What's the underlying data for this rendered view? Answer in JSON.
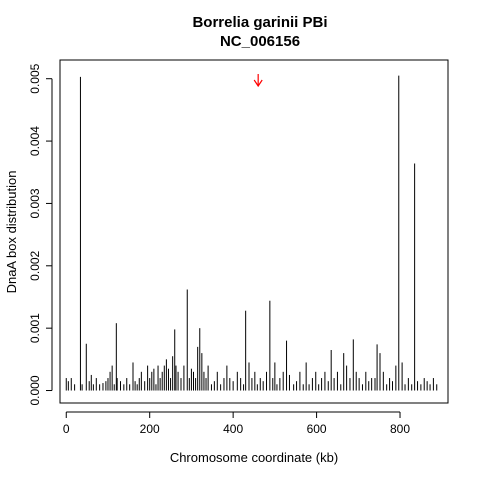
{
  "chart_data": {
    "type": "bar",
    "title": "Borrelia garinii PBi",
    "subtitle": "NC_006156",
    "xlabel": "Chromosome coordinate (kb)",
    "ylabel": "DnaA box distribution",
    "xlim": [
      -15,
      915
    ],
    "ylim": [
      -0.0002,
      0.0053
    ],
    "xticks": [
      0,
      200,
      400,
      600,
      800
    ],
    "yticks": [
      0.0,
      0.001,
      0.002,
      0.003,
      0.004,
      0.005
    ],
    "ytick_labels": [
      "0.000",
      "0.001",
      "0.002",
      "0.003",
      "0.004",
      "0.005"
    ],
    "marker": {
      "x": 460,
      "color": "#ff0000",
      "label": "arrow-down"
    },
    "series": [
      {
        "x": [
          0,
          5,
          12,
          20,
          34,
          38,
          48,
          55,
          60,
          65,
          72,
          80,
          88,
          95,
          100,
          105,
          110,
          115,
          120,
          122,
          130,
          138,
          145,
          152,
          160,
          165,
          170,
          175,
          180,
          188,
          195,
          200,
          205,
          210,
          215,
          220,
          225,
          230,
          235,
          240,
          245,
          250,
          255,
          260,
          263,
          268,
          275,
          282,
          290,
          295,
          300,
          305,
          310,
          315,
          320,
          325,
          330,
          335,
          340,
          348,
          355,
          362,
          370,
          378,
          385,
          392,
          400,
          410,
          418,
          425,
          430,
          438,
          445,
          452,
          458,
          465,
          472,
          480,
          488,
          495,
          500,
          505,
          512,
          520,
          528,
          535,
          545,
          552,
          560,
          568,
          575,
          582,
          590,
          598,
          605,
          612,
          620,
          628,
          635,
          642,
          650,
          658,
          665,
          672,
          680,
          688,
          695,
          702,
          710,
          718,
          725,
          732,
          740,
          745,
          752,
          760,
          768,
          775,
          782,
          790,
          797,
          805,
          812,
          820,
          828,
          835,
          842,
          850,
          858,
          865,
          872,
          880,
          888
        ],
        "values": [
          0.0002,
          0.00015,
          0.0002,
          0.0001,
          0.00503,
          0.0001,
          0.00075,
          0.00015,
          0.00025,
          0.0001,
          0.0002,
          0.0001,
          0.00012,
          0.00015,
          0.0002,
          0.0003,
          0.0004,
          0.0001,
          0.00108,
          0.0002,
          0.00015,
          0.0001,
          0.0002,
          0.0001,
          0.00045,
          0.00015,
          0.0001,
          0.0002,
          0.0003,
          0.00015,
          0.0004,
          0.0002,
          0.0003,
          0.00035,
          0.0001,
          0.0004,
          0.0002,
          0.0003,
          0.0004,
          0.0005,
          0.00035,
          0.0002,
          0.00055,
          0.00098,
          0.0004,
          0.0003,
          0.0002,
          0.0004,
          0.00162,
          0.0002,
          0.00035,
          0.0003,
          0.0002,
          0.0007,
          0.001,
          0.0006,
          0.0003,
          0.0002,
          0.0004,
          0.0001,
          0.00015,
          0.0003,
          0.0001,
          0.0002,
          0.0004,
          0.0002,
          0.00015,
          0.0003,
          0.0002,
          0.0001,
          0.00128,
          0.00045,
          0.0002,
          0.0003,
          0.0001,
          0.0002,
          0.00015,
          0.0003,
          0.00144,
          0.0002,
          0.00045,
          0.0001,
          0.0002,
          0.0003,
          0.0008,
          0.00025,
          0.0001,
          0.00015,
          0.0003,
          0.0001,
          0.00045,
          0.0001,
          0.0002,
          0.0003,
          0.0001,
          0.0002,
          0.0003,
          0.00015,
          0.00065,
          0.0002,
          0.0003,
          0.0001,
          0.0006,
          0.0004,
          0.0002,
          0.00082,
          0.0003,
          0.0002,
          0.0001,
          0.0003,
          0.00015,
          0.0002,
          0.0002,
          0.00074,
          0.0006,
          0.0003,
          0.0001,
          0.0002,
          0.00015,
          0.0004,
          0.00505,
          0.00045,
          0.0001,
          0.0002,
          0.0001,
          0.00364,
          0.00015,
          0.0001,
          0.0002,
          0.00015,
          0.0001,
          0.0002,
          0.0001
        ]
      }
    ]
  }
}
